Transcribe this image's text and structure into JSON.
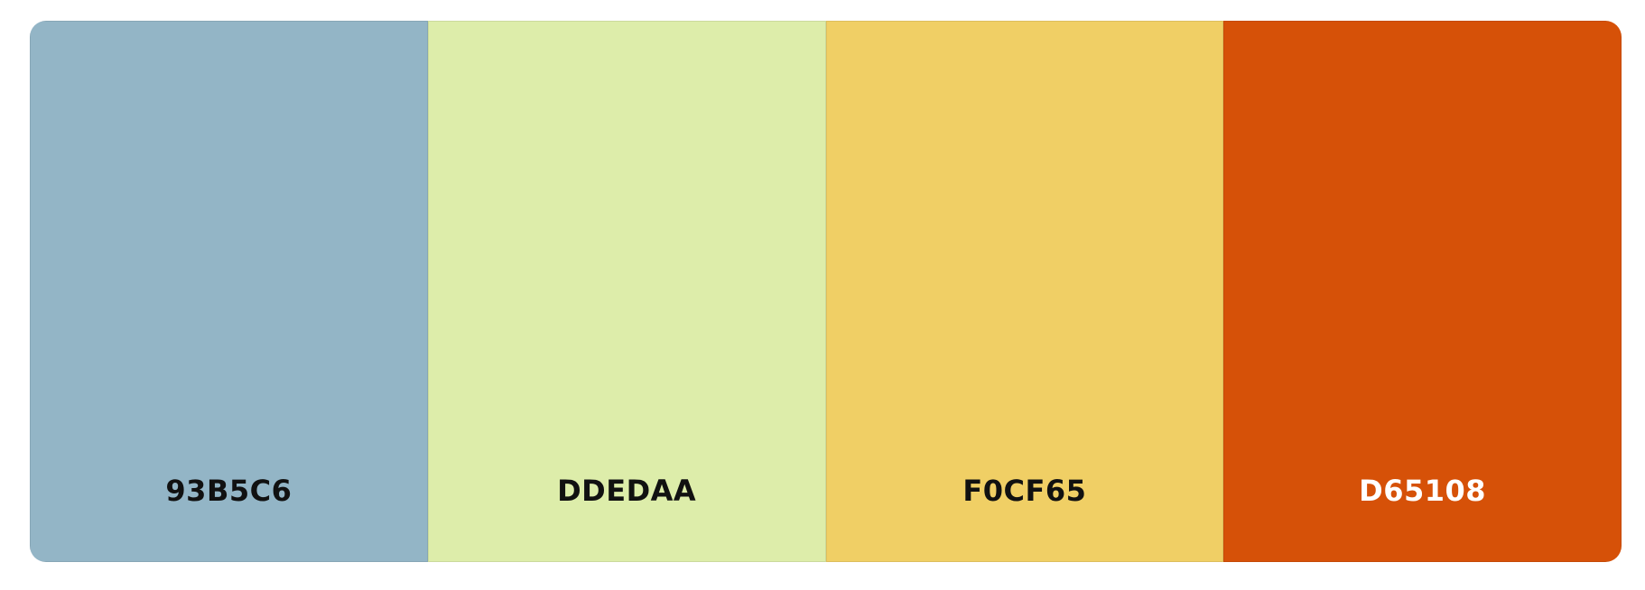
{
  "palette": {
    "swatches": [
      {
        "hex": "93B5C6",
        "color": "#93B5C6",
        "text_color": "#111111"
      },
      {
        "hex": "DDEDAA",
        "color": "#DDEDAA",
        "text_color": "#111111"
      },
      {
        "hex": "F0CF65",
        "color": "#F0CF65",
        "text_color": "#111111"
      },
      {
        "hex": "D65108",
        "color": "#D65108",
        "text_color": "#FFFFFF"
      }
    ]
  }
}
